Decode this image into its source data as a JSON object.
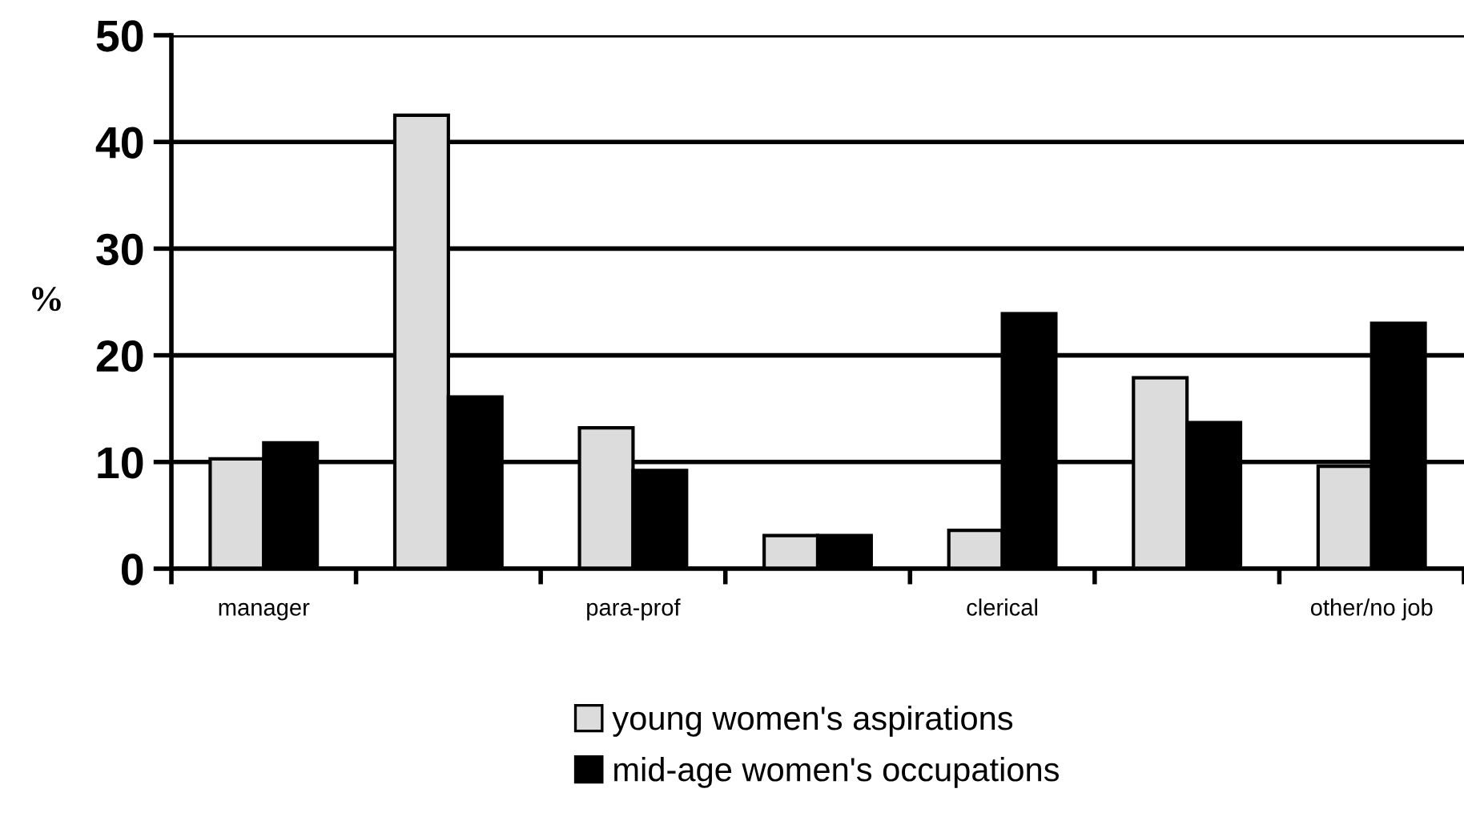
{
  "chart_data": {
    "type": "bar",
    "ylabel": "%",
    "categories": [
      "manager",
      null,
      "para-prof",
      null,
      "clerical",
      null,
      "other/no job"
    ],
    "series": [
      {
        "name": "young women's aspirations",
        "color": "#dcdcdc",
        "values": [
          10.3,
          42.5,
          13.2,
          3.1,
          3.6,
          17.9,
          9.6
        ]
      },
      {
        "name": "mid-age women's occupations",
        "color": "#000000",
        "values": [
          11.8,
          16.1,
          9.2,
          3.1,
          23.9,
          13.7,
          23.0
        ]
      }
    ],
    "ylim": [
      0,
      50
    ],
    "yticks": [
      0,
      10,
      20,
      30,
      40,
      50
    ],
    "grid": "y",
    "legend": "bottom"
  }
}
